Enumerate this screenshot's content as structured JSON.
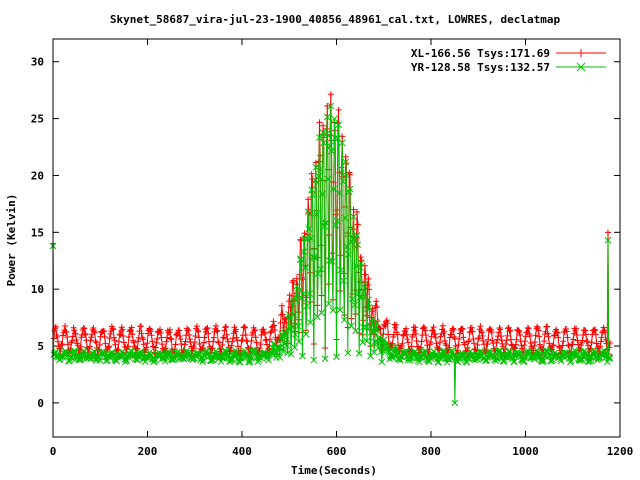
{
  "chart_data": {
    "type": "line",
    "title": "Skynet_58687_vira-jul-23-1900_40856_48961_cal.txt, LOWRES, declatmap",
    "xlabel": "Time(Seconds)",
    "ylabel": "Power (Kelvin)",
    "xlim": [
      0,
      1200
    ],
    "ylim": [
      -3,
      32
    ],
    "xticks": [
      0,
      200,
      400,
      600,
      800,
      1000,
      1200
    ],
    "yticks": [
      0,
      5,
      10,
      15,
      20,
      25,
      30
    ],
    "grid": false,
    "legend_position": "top-right",
    "series": [
      {
        "name": "XL-166.56 Tsys:171.69",
        "color": "#ff0000",
        "marker": "plus",
        "sample_interval": 1.5,
        "time_range": [
          0,
          1180
        ],
        "baseline": {
          "mean": 5.5,
          "oscillation_amplitude": 1.0,
          "oscillation_period": 20
        },
        "spikes": [
          {
            "x": 0,
            "y": 14.0
          },
          {
            "x": 1175,
            "y": 15.0
          }
        ],
        "peak": {
          "x_center": 588,
          "x_range": [
            450,
            730
          ],
          "max": 26.5,
          "scan_period": 8
        },
        "noise": 0.3
      },
      {
        "name": "YR-128.58 Tsys:132.57",
        "color": "#00c000",
        "marker": "cross",
        "sample_interval": 1.5,
        "time_range": [
          0,
          1180
        ],
        "baseline": {
          "mean": 4.1,
          "oscillation_amplitude": 0.3,
          "oscillation_period": 20
        },
        "spikes": [
          {
            "x": 0,
            "y": 13.8
          },
          {
            "x": 850,
            "y": 0.0
          },
          {
            "x": 1175,
            "y": 14.3
          }
        ],
        "peak": {
          "x_center": 588,
          "x_range": [
            450,
            730
          ],
          "max": 25.8,
          "scan_period": 8
        },
        "noise": 0.25
      }
    ]
  }
}
